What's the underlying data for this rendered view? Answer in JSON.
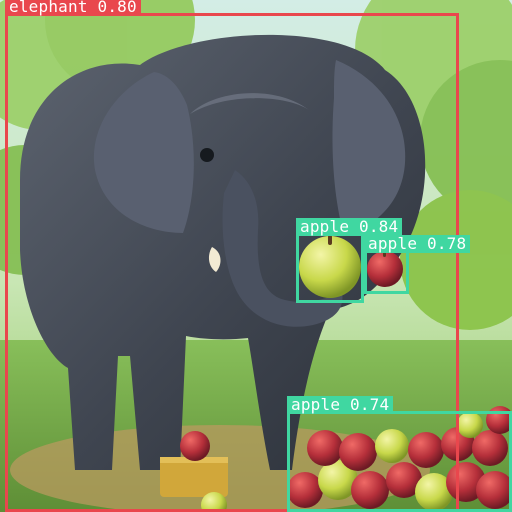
{
  "image": {
    "subject": "elephant",
    "colors": {
      "sky": "#d9efe8",
      "grass": "#89c35a",
      "tree": "#8bc34a",
      "elephant": "#4b5058",
      "elephant_light": "#767d88",
      "apple_red": "#b52f3a",
      "apple_green": "#c4d44a"
    }
  },
  "detections": [
    {
      "label": "elephant",
      "score": "0.80",
      "color": "#e9474d"
    },
    {
      "label": "apple",
      "score": "0.84",
      "color": "#40d7a1"
    },
    {
      "label": "apple",
      "score": "0.78",
      "color": "#40d7a1"
    },
    {
      "label": "apple",
      "score": "0.74",
      "color": "#40d7a1"
    }
  ]
}
